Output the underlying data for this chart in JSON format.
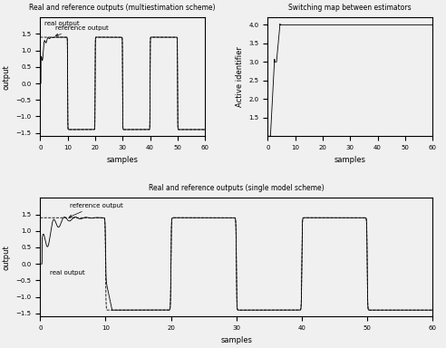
{
  "top_left_title": "Real and reference outputs (multiestimation scheme)",
  "top_right_title": "Switching map between estimators",
  "bottom_title": "Real and reference outputs (single model scheme)",
  "xlabel": "samples",
  "ylabel_output": "output",
  "ylabel_active": "Active identifier",
  "xlim": [
    0,
    60
  ],
  "ylim_output": [
    -1.6,
    2.0
  ],
  "ylim_active": [
    1.0,
    4.2
  ],
  "bg_color": "#f0f0f0",
  "line_color": "#000000",
  "xticks": [
    0,
    10,
    20,
    30,
    40,
    50,
    60
  ],
  "yticks_output": [
    -1.5,
    -1.0,
    -0.5,
    0.0,
    0.5,
    1.0,
    1.5
  ],
  "yticks_active": [
    1.5,
    2.0,
    2.5,
    3.0,
    3.5,
    4.0
  ],
  "title_fontsize": 5.5,
  "label_fontsize": 6,
  "tick_fontsize": 5,
  "annotation_fontsize": 5
}
